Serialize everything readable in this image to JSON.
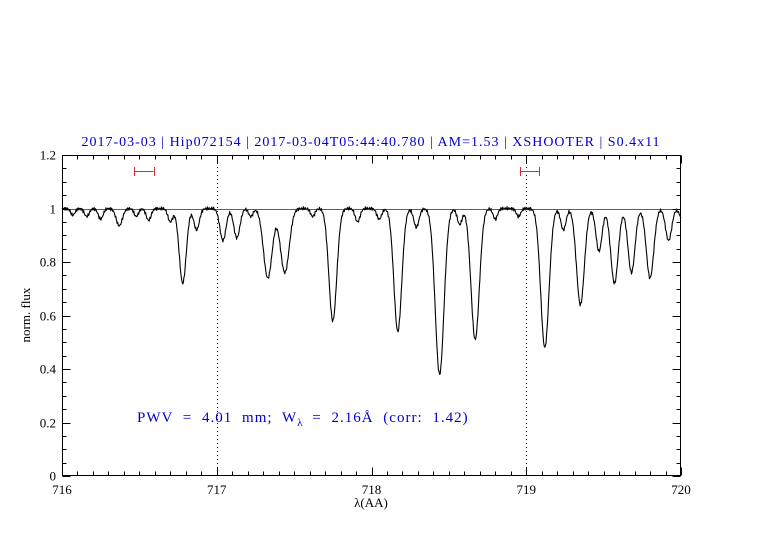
{
  "figure": {
    "title": "2017-03-03 | Hip072154 | 2017-03-04T05:44:40.780 | AM=1.53 | XSHOOTER | S0.4x11",
    "title_color": "#0000cd",
    "xlabel": "λ(AA)",
    "ylabel": "norm. flux",
    "annotation": {
      "pre": "PWV = 4.01 mm; W",
      "sub": "λ",
      "post": " = 2.16Å (corr: 1.42)",
      "color": "#0000cd"
    }
  },
  "chart_data": {
    "type": "line",
    "title": "2017-03-03 | Hip072154 | 2017-03-04T05:44:40.780 | AM=1.53 | XSHOOTER | S0.4x11",
    "xlabel": "λ(AA)",
    "ylabel": "norm. flux",
    "xlim": [
      716,
      720
    ],
    "ylim": [
      0,
      1.2
    ],
    "grid": "off",
    "x_ticks": [
      716,
      717,
      718,
      719,
      720
    ],
    "x_tick_labels": [
      "716",
      "717",
      "718",
      "719",
      "720"
    ],
    "y_ticks": [
      0,
      0.2,
      0.4,
      0.6,
      0.8,
      1,
      1.2
    ],
    "y_tick_labels": [
      "0",
      "0.2",
      "0.4",
      "0.6",
      "0.8",
      "1",
      "1.2"
    ],
    "x_minor_step": 0.1,
    "y_minor_step": 0.05,
    "continuum_line": {
      "y": 1.0,
      "color": "#cc3333"
    },
    "dotted_vlines": [
      717,
      719
    ],
    "range_markers": [
      {
        "x_center": 716.53,
        "half_width": 0.062,
        "y": 1.14,
        "color": "#cc3333"
      },
      {
        "x_center": 719.02,
        "half_width": 0.062,
        "y": 1.14,
        "color": "#cc3333"
      }
    ],
    "spectrum": {
      "color": "#000000",
      "continuum": 1.0,
      "sampling_step": 0.004,
      "noise": [
        {
          "amp": 0.004,
          "freq": 487.3,
          "phase": 0
        },
        {
          "amp": 0.003,
          "freq": 911.7,
          "phase": 1.3
        }
      ],
      "absorption_lines": [
        {
          "center": 716.07,
          "depth": 0.025,
          "sigma": 0.02
        },
        {
          "center": 716.16,
          "depth": 0.03,
          "sigma": 0.022
        },
        {
          "center": 716.25,
          "depth": 0.04,
          "sigma": 0.022
        },
        {
          "center": 716.37,
          "depth": 0.065,
          "sigma": 0.028
        },
        {
          "center": 716.48,
          "depth": 0.03,
          "sigma": 0.02
        },
        {
          "center": 716.56,
          "depth": 0.045,
          "sigma": 0.022
        },
        {
          "center": 716.7,
          "depth": 0.05,
          "sigma": 0.022
        },
        {
          "center": 716.78,
          "depth": 0.28,
          "sigma": 0.032
        },
        {
          "center": 716.87,
          "depth": 0.08,
          "sigma": 0.025
        },
        {
          "center": 717.04,
          "depth": 0.12,
          "sigma": 0.028
        },
        {
          "center": 717.13,
          "depth": 0.11,
          "sigma": 0.028
        },
        {
          "center": 717.22,
          "depth": 0.03,
          "sigma": 0.02
        },
        {
          "center": 717.33,
          "depth": 0.26,
          "sigma": 0.04
        },
        {
          "center": 717.44,
          "depth": 0.24,
          "sigma": 0.04
        },
        {
          "center": 717.62,
          "depth": 0.03,
          "sigma": 0.02
        },
        {
          "center": 717.75,
          "depth": 0.42,
          "sigma": 0.036
        },
        {
          "center": 717.91,
          "depth": 0.05,
          "sigma": 0.022
        },
        {
          "center": 718.05,
          "depth": 0.04,
          "sigma": 0.022
        },
        {
          "center": 718.17,
          "depth": 0.46,
          "sigma": 0.036
        },
        {
          "center": 718.29,
          "depth": 0.07,
          "sigma": 0.024
        },
        {
          "center": 718.44,
          "depth": 0.62,
          "sigma": 0.04
        },
        {
          "center": 718.57,
          "depth": 0.06,
          "sigma": 0.022
        },
        {
          "center": 718.67,
          "depth": 0.49,
          "sigma": 0.038
        },
        {
          "center": 718.8,
          "depth": 0.04,
          "sigma": 0.02
        },
        {
          "center": 718.95,
          "depth": 0.03,
          "sigma": 0.02
        },
        {
          "center": 719.12,
          "depth": 0.52,
          "sigma": 0.038
        },
        {
          "center": 719.24,
          "depth": 0.08,
          "sigma": 0.024
        },
        {
          "center": 719.35,
          "depth": 0.36,
          "sigma": 0.036
        },
        {
          "center": 719.47,
          "depth": 0.16,
          "sigma": 0.028
        },
        {
          "center": 719.57,
          "depth": 0.28,
          "sigma": 0.034
        },
        {
          "center": 719.68,
          "depth": 0.24,
          "sigma": 0.032
        },
        {
          "center": 719.8,
          "depth": 0.26,
          "sigma": 0.034
        },
        {
          "center": 719.92,
          "depth": 0.12,
          "sigma": 0.028
        },
        {
          "center": 720.02,
          "depth": 0.06,
          "sigma": 0.03
        }
      ]
    }
  }
}
